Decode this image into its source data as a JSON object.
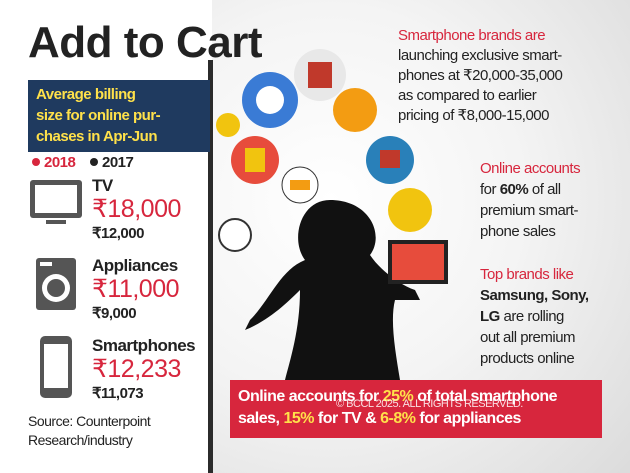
{
  "title": "Add to Cart",
  "billing_box": {
    "lines": [
      "Average billing",
      "size for online pur-",
      "chases in Apr-Jun"
    ]
  },
  "legend": [
    "2018",
    "2017"
  ],
  "items": [
    {
      "name": "TV",
      "value_2018": "₹18,000",
      "value_2017": "₹12,000"
    },
    {
      "name": "Appliances",
      "value_2018": "₹11,000",
      "value_2017": "₹9,000"
    },
    {
      "name": "Smartphones",
      "value_2018": "₹12,233",
      "value_2017": "₹11,073"
    }
  ],
  "source": [
    "Source: Counterpoint",
    "Research/industry"
  ],
  "notes": [
    {
      "lines": [
        [
          "Smartphone brands are"
        ],
        [
          "launching exclusive smart-"
        ],
        [
          "phones at ₹20,000-35,000"
        ],
        [
          "as compared to earlier"
        ],
        [
          "pricing of ₹8,000-15,000"
        ]
      ]
    },
    {
      "lines": [
        [
          "Online accounts"
        ],
        [
          "for",
          "60%",
          "of all"
        ],
        [
          "premium smart-"
        ],
        [
          "phone sales"
        ]
      ]
    },
    {
      "lines": [
        [
          "Top brands like"
        ],
        [
          "Samsung, Sony,"
        ],
        [
          "LG",
          "are rolling"
        ],
        [
          "out all premium"
        ],
        [
          "products online"
        ]
      ]
    }
  ],
  "banner": {
    "lines": [
      [
        "Online accounts for",
        "25%",
        "of total smartphone"
      ],
      [
        "sales,",
        "15%",
        "for TV &",
        "6-8%",
        "for appliances"
      ]
    ]
  },
  "watermark": "© BCCL 2025. ALL RIGHTS RESERVED."
}
